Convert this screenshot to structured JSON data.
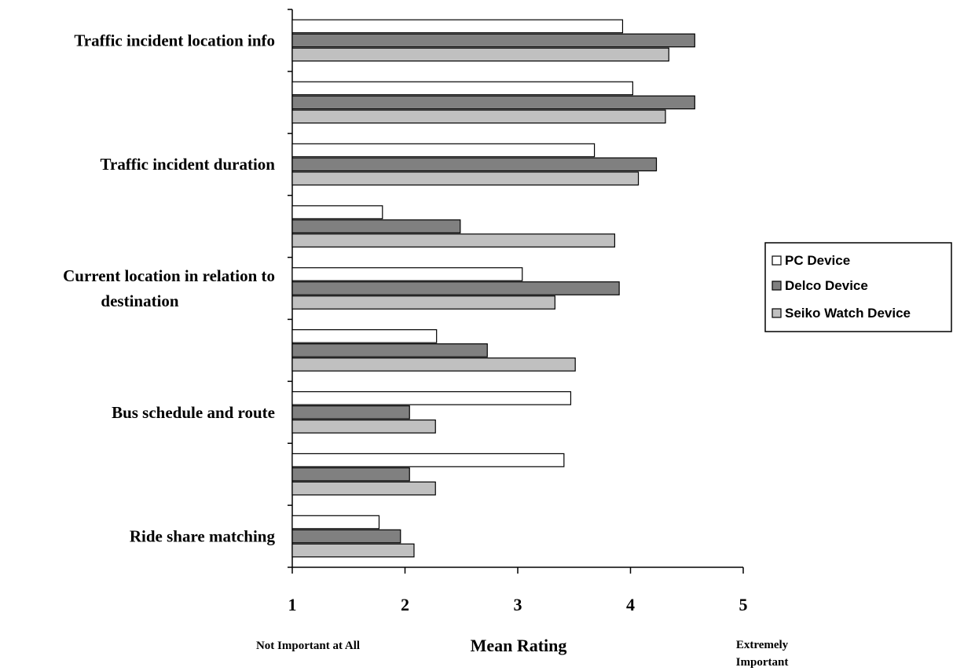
{
  "chart_data": {
    "type": "bar",
    "orientation": "horizontal",
    "categories": [
      "Traffic incident location info",
      "",
      "Traffic incident duration",
      "",
      "Current location in relation to destination",
      "",
      "Bus schedule and route",
      "",
      "Ride share matching"
    ],
    "category_label_lines": [
      [
        "Traffic incident location info"
      ],
      [],
      [
        "Traffic incident duration"
      ],
      [],
      [
        "Current location in relation to",
        "destination"
      ],
      [],
      [
        "Bus schedule and route"
      ],
      [],
      [
        "Ride share matching"
      ]
    ],
    "series": [
      {
        "name": "PC Device",
        "color": "#ffffff",
        "values": [
          3.93,
          4.02,
          3.68,
          1.8,
          3.04,
          2.28,
          3.47,
          3.41,
          1.77
        ]
      },
      {
        "name": "Delco Device",
        "color": "#808080",
        "values": [
          4.57,
          4.57,
          4.23,
          2.49,
          3.9,
          2.73,
          2.04,
          2.04,
          1.96
        ]
      },
      {
        "name": "Seiko Watch Device",
        "color": "#c0c0c0",
        "values": [
          4.34,
          4.31,
          4.07,
          3.86,
          3.33,
          3.51,
          2.27,
          2.27,
          2.08
        ]
      }
    ],
    "xlim": [
      1,
      5
    ],
    "x_ticks": [
      1,
      2,
      3,
      4,
      5
    ],
    "x_tick_labels": [
      "1",
      "2",
      "3",
      "4",
      "5"
    ],
    "xlabel": "Mean Rating",
    "x_anchor_low": "Not Important at All",
    "x_anchor_high": [
      "Extremely",
      "Important"
    ],
    "legend_position": "right"
  }
}
